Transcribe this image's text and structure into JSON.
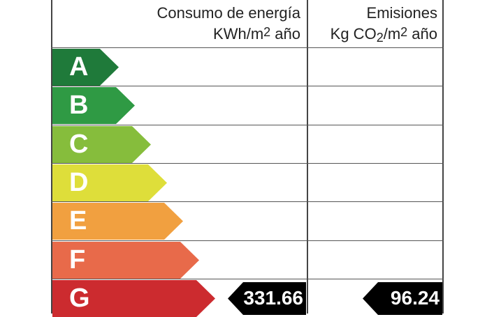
{
  "headers": {
    "energy_line1": "Consumo de energía",
    "energy_line2_pre": "KWh/m",
    "energy_line2_sup": "2",
    "energy_line2_post": " año",
    "emissions_line1": "Emisiones",
    "emissions_line2_pre": "Kg CO",
    "emissions_line2_sub": "2",
    "emissions_line2_mid": "/m",
    "emissions_line2_sup": "2",
    "emissions_line2_post": " año"
  },
  "ratings": [
    {
      "letter": "A",
      "color": "#1f7a3a"
    },
    {
      "letter": "B",
      "color": "#2f9a44"
    },
    {
      "letter": "C",
      "color": "#86bd3c"
    },
    {
      "letter": "D",
      "color": "#dede3a"
    },
    {
      "letter": "E",
      "color": "#f1a040"
    },
    {
      "letter": "F",
      "color": "#e86a4a"
    },
    {
      "letter": "G",
      "color": "#cc2b2f"
    }
  ],
  "current": {
    "letter": "G",
    "energy_value": "331.66",
    "emissions_value": "96.24"
  }
}
